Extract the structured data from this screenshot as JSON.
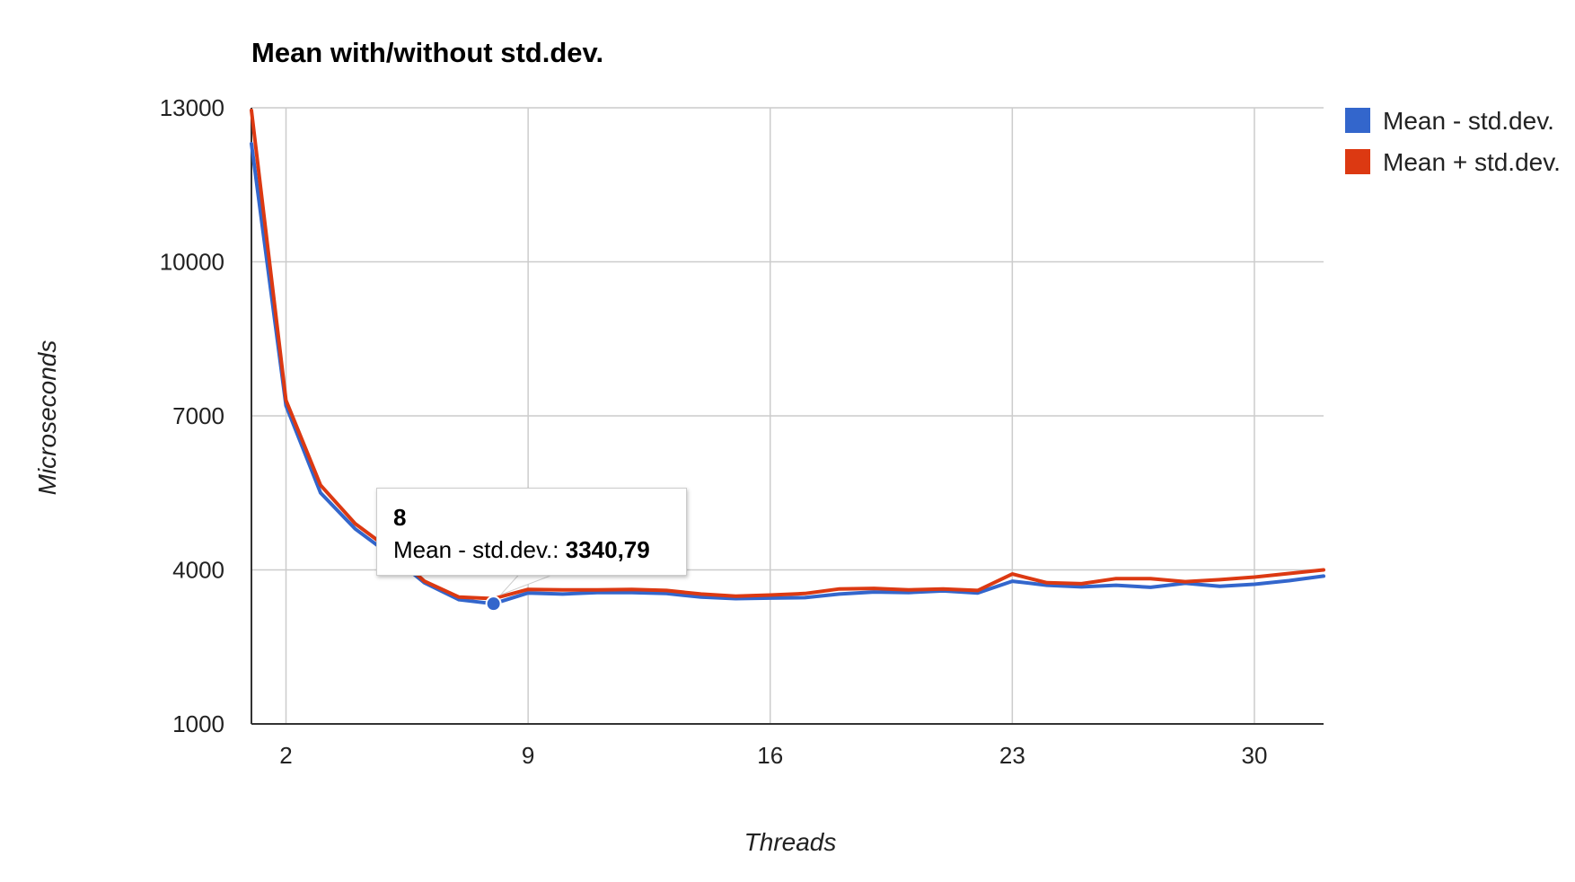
{
  "chart_data": {
    "type": "line",
    "title": "Mean with/without std.dev.",
    "xlabel": "Threads",
    "ylabel": "Microseconds",
    "xlim": [
      1,
      32
    ],
    "ylim": [
      1000,
      13000
    ],
    "x_ticks": [
      2,
      9,
      16,
      23,
      30
    ],
    "y_ticks": [
      1000,
      4000,
      7000,
      10000,
      13000
    ],
    "grid": true,
    "legend_position": "right",
    "x": [
      1,
      2,
      3,
      4,
      5,
      6,
      7,
      8,
      9,
      10,
      11,
      12,
      13,
      14,
      15,
      16,
      17,
      18,
      19,
      20,
      21,
      22,
      23,
      24,
      25,
      26,
      27,
      28,
      29,
      30,
      31,
      32
    ],
    "series": [
      {
        "name": "Mean - std.dev.",
        "color": "#3366cc",
        "values": [
          12300,
          7200,
          5500,
          4800,
          4300,
          3750,
          3420,
          3340.79,
          3550,
          3530,
          3560,
          3560,
          3540,
          3470,
          3440,
          3450,
          3460,
          3530,
          3570,
          3560,
          3590,
          3550,
          3780,
          3700,
          3670,
          3700,
          3660,
          3740,
          3680,
          3720,
          3790,
          3880
        ]
      },
      {
        "name": "Mean + std.dev.",
        "color": "#dc3912",
        "values": [
          12950,
          7300,
          5650,
          4900,
          4400,
          3780,
          3470,
          3440,
          3620,
          3610,
          3610,
          3620,
          3600,
          3530,
          3490,
          3510,
          3540,
          3630,
          3640,
          3610,
          3630,
          3600,
          3920,
          3750,
          3730,
          3830,
          3830,
          3770,
          3810,
          3860,
          3930,
          4000
        ]
      }
    ],
    "tooltip": {
      "x_label": "8",
      "series_label": "Mean - std.dev.:",
      "value_label": "3340,79",
      "point_index": 7,
      "series_index": 0
    }
  }
}
